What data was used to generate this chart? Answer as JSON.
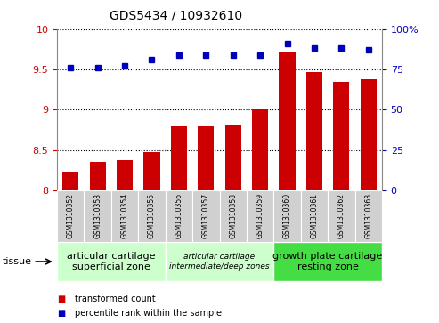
{
  "title": "GDS5434 / 10932610",
  "samples": [
    "GSM1310352",
    "GSM1310353",
    "GSM1310354",
    "GSM1310355",
    "GSM1310356",
    "GSM1310357",
    "GSM1310358",
    "GSM1310359",
    "GSM1310360",
    "GSM1310361",
    "GSM1310362",
    "GSM1310363"
  ],
  "bar_values": [
    8.23,
    8.35,
    8.38,
    8.48,
    8.79,
    8.79,
    8.82,
    9.0,
    9.72,
    9.47,
    9.35,
    9.38
  ],
  "percentile_values": [
    76,
    76,
    77,
    81,
    84,
    84,
    84,
    84,
    91,
    88,
    88,
    87
  ],
  "bar_color": "#cc0000",
  "dot_color": "#0000bb",
  "ylim_left": [
    8,
    10
  ],
  "yticks_left": [
    8,
    8.5,
    9,
    9.5,
    10
  ],
  "right_labels": [
    "0",
    "25",
    "50",
    "75",
    "100%"
  ],
  "groups": [
    {
      "label": "articular cartilage\nsuperficial zone",
      "start": 0,
      "end": 4,
      "color": "#ccffcc",
      "fontsize": 8,
      "style": "normal"
    },
    {
      "label": "articular cartilage\nintermediate/deep zones",
      "start": 4,
      "end": 8,
      "color": "#ccffcc",
      "fontsize": 6.5,
      "style": "italic"
    },
    {
      "label": "growth plate cartilage\nresting zone",
      "start": 8,
      "end": 12,
      "color": "#44dd44",
      "fontsize": 8,
      "style": "normal"
    }
  ],
  "legend_bar_label": "transformed count",
  "legend_dot_label": "percentile rank within the sample",
  "tissue_label": "tissue",
  "bar_color_left": "#cc0000",
  "dot_color_right": "#0000bb",
  "cell_color": "#d0d0d0",
  "plot_bg": "#ffffff"
}
